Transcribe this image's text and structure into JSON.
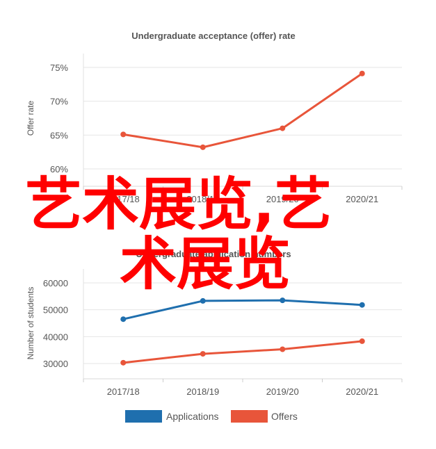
{
  "chart_data": [
    {
      "type": "line",
      "title": "Undergraduate acceptance (offer) rate",
      "ylabel": "Offer rate",
      "categories": [
        "2017/18",
        "2018/19",
        "2019/20",
        "2020/21"
      ],
      "y_ticks": [
        "60%",
        "65%",
        "70%",
        "75%"
      ],
      "ylim": [
        60,
        75
      ],
      "series": [
        {
          "values": [
            65.1,
            63.2,
            66.0,
            74.1
          ],
          "color": "#e8553a"
        }
      ]
    },
    {
      "type": "line",
      "title": "Undergraduate application numbers",
      "ylabel": "Number of students",
      "categories": [
        "2017/18",
        "2018/19",
        "2019/20",
        "2020/21"
      ],
      "y_ticks": [
        "30000",
        "40000",
        "50000",
        "60000"
      ],
      "ylim": [
        30000,
        60000
      ],
      "series": [
        {
          "name": "Applications",
          "values": [
            46500,
            53300,
            53500,
            51800
          ],
          "color": "#1f6fae"
        },
        {
          "name": "Offers",
          "values": [
            30300,
            33600,
            35300,
            38300
          ],
          "color": "#e8553a"
        }
      ],
      "legend_position": "bottom"
    }
  ],
  "overlay": {
    "line1": "艺术展览,艺",
    "line2": "术展览",
    "color": "#ff0000"
  }
}
